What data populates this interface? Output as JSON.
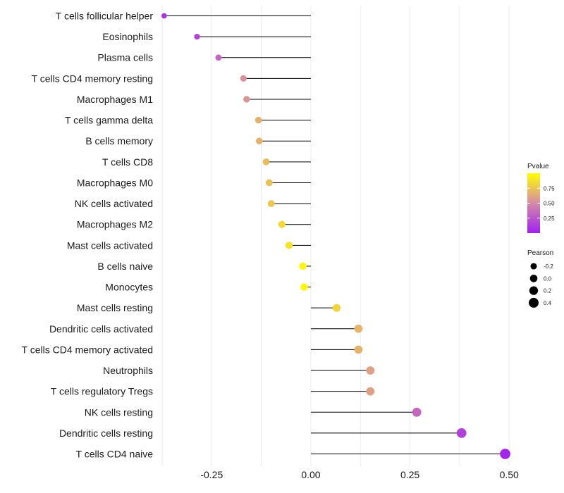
{
  "chart_data": {
    "type": "lollipop",
    "categories": [
      "T cells follicular helper",
      "Eosinophils",
      "Plasma cells",
      "T cells CD4 memory resting",
      "Macrophages M1",
      "T cells gamma delta",
      "B cells memory",
      "T cells CD8",
      "Macrophages M0",
      "NK cells activated",
      "Macrophages M2",
      "Mast cells activated",
      "B cells naive",
      "Monocytes",
      "Mast cells resting",
      "Dendritic cells activated",
      "T cells CD4 memory activated",
      "Neutrophils",
      "T cells regulatory  Tregs",
      "NK cells resting",
      "Dendritic cells resting",
      "T cells CD4 naive"
    ],
    "values": [
      -0.37,
      -0.287,
      -0.233,
      -0.17,
      -0.162,
      -0.132,
      -0.13,
      -0.113,
      -0.105,
      -0.1,
      -0.073,
      -0.055,
      -0.02,
      -0.017,
      0.065,
      0.12,
      0.12,
      0.15,
      0.15,
      0.267,
      0.38,
      0.49
    ],
    "pvalues": [
      0.09,
      0.17,
      0.33,
      0.53,
      0.55,
      0.67,
      0.67,
      0.72,
      0.74,
      0.76,
      0.84,
      0.88,
      0.96,
      0.97,
      0.82,
      0.68,
      0.68,
      0.6,
      0.6,
      0.33,
      0.16,
      0.03
    ],
    "xlim": [
      -0.375,
      0.505
    ],
    "xticks": [
      -0.25,
      0.0,
      0.25,
      0.5
    ],
    "xtick_labels": [
      "-0.25",
      "0.00",
      "0.25",
      "0.50"
    ],
    "grid": true,
    "legend": {
      "color": {
        "title": "Pvalue",
        "breaks": [
          0.75,
          0.5,
          0.25
        ],
        "labels": [
          "0.75",
          "0.50",
          "0.25"
        ],
        "low_color": "#a020f0",
        "mid_color": "#d58aa8",
        "high_color": "#ffff00"
      },
      "size": {
        "title": "Pearson",
        "breaks": [
          -0.2,
          0.0,
          0.2,
          0.4
        ],
        "labels": [
          "-0.2",
          "0.0",
          "0.2",
          "0.4"
        ],
        "color": "#000000"
      },
      "placement": "right"
    }
  }
}
